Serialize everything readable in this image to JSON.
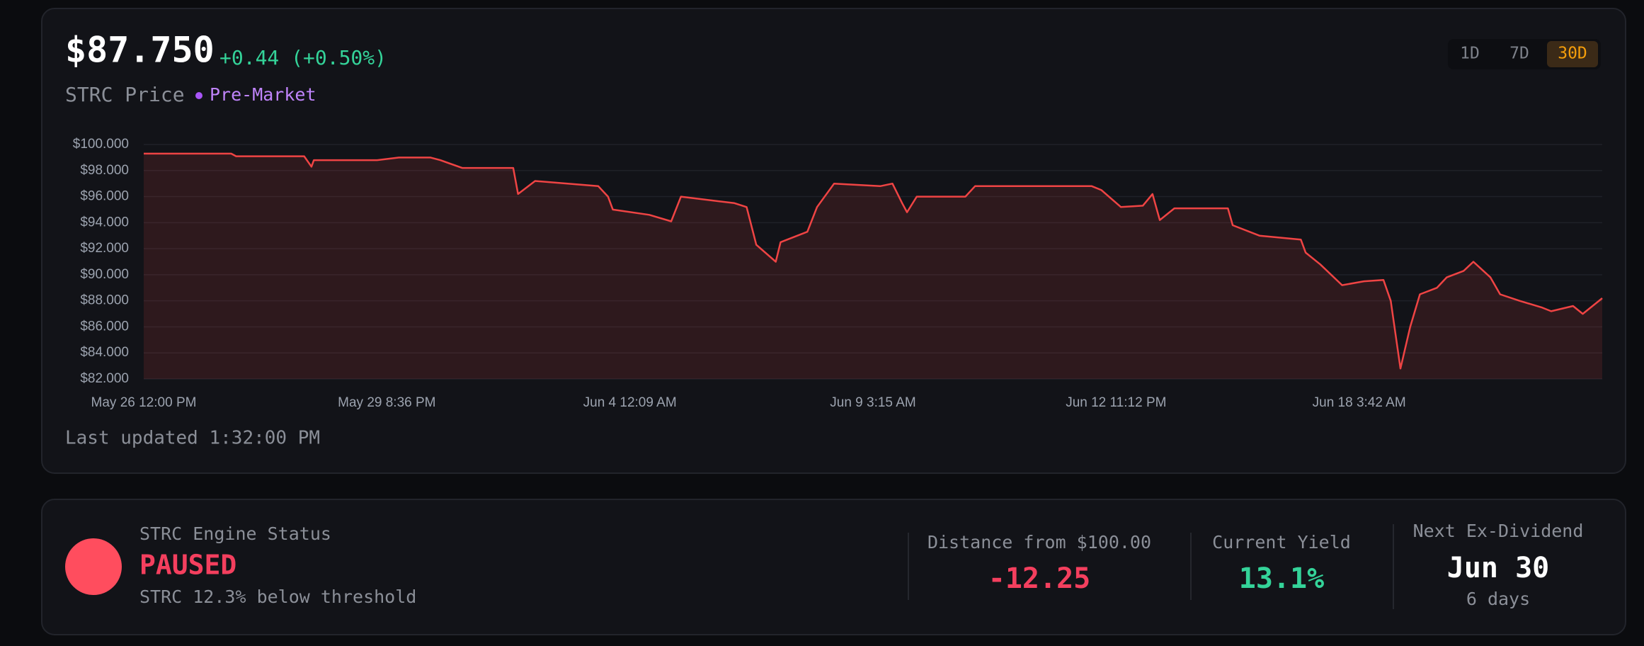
{
  "header": {
    "price": "$87.750",
    "change": "+0.44 (+0.50%)",
    "label": "STRC Price",
    "session": "Pre-Market"
  },
  "range_buttons": [
    "1D",
    "7D",
    "30D"
  ],
  "chart_data": {
    "type": "line",
    "x": [
      0,
      36,
      38,
      66,
      69,
      70,
      96,
      105,
      118,
      122,
      131,
      152,
      154,
      161,
      187,
      191,
      193,
      208,
      217,
      221,
      243,
      248,
      252,
      260,
      262,
      273,
      277,
      284,
      303,
      308,
      312,
      314,
      318,
      338,
      342,
      390,
      394,
      402,
      411,
      415,
      418,
      424,
      446,
      448,
      459,
      476,
      478,
      484,
      493,
      502,
      510,
      513,
      517,
      521,
      525,
      532,
      536,
      543,
      547,
      554,
      558,
      566,
      575,
      579,
      588,
      592,
      600
    ],
    "series": [
      {
        "color": "#ef4444",
        "values": [
          99.3,
          99.3,
          99.1,
          99.1,
          98.3,
          98.8,
          98.8,
          99.0,
          99.0,
          98.8,
          98.2,
          98.2,
          96.2,
          97.2,
          96.8,
          96.0,
          95.0,
          94.6,
          94.1,
          96.0,
          95.5,
          95.2,
          92.3,
          91.0,
          92.5,
          93.3,
          95.2,
          97.0,
          96.8,
          97.0,
          95.5,
          94.8,
          96.0,
          96.0,
          96.8,
          96.8,
          96.5,
          95.2,
          95.3,
          96.2,
          94.2,
          95.1,
          95.1,
          93.8,
          93.0,
          92.7,
          91.7,
          90.8,
          89.2,
          89.5,
          89.6,
          88.0,
          82.8,
          86.0,
          88.5,
          89.0,
          89.8,
          90.3,
          91.0,
          89.8,
          88.5,
          88.0,
          87.5,
          87.2,
          87.6,
          87.0,
          88.2
        ]
      }
    ],
    "xlim": [
      0,
      600
    ],
    "xticks": [
      {
        "value": 0,
        "label": "May 26 12:00 PM"
      },
      {
        "value": 100,
        "label": "May 29 8:36 PM"
      },
      {
        "value": 200,
        "label": "Jun 4 12:09 AM"
      },
      {
        "value": 300,
        "label": "Jun 9 3:15 AM"
      },
      {
        "value": 400,
        "label": "Jun 12 11:12 PM"
      },
      {
        "value": 500,
        "label": "Jun 18 3:42 AM"
      }
    ],
    "ylim": [
      82,
      100
    ],
    "yticks": [
      {
        "value": 82,
        "label": "$82.000"
      },
      {
        "value": 84,
        "label": "$84.000"
      },
      {
        "value": 86,
        "label": "$86.000"
      },
      {
        "value": 88,
        "label": "$88.000"
      },
      {
        "value": 90,
        "label": "$90.000"
      },
      {
        "value": 92,
        "label": "$92.000"
      },
      {
        "value": 94,
        "label": "$94.000"
      },
      {
        "value": 96,
        "label": "$96.000"
      },
      {
        "value": 98,
        "label": "$98.000"
      },
      {
        "value": 100,
        "label": "$100.000"
      }
    ],
    "grid": true
  },
  "footer": {
    "last_updated": "Last updated 1:32:00 PM"
  },
  "status": {
    "title": "STRC Engine Status",
    "state": "PAUSED",
    "detail": "STRC 12.3% below threshold"
  },
  "metrics": [
    {
      "label": "Distance from $100.00",
      "value": "-12.25"
    },
    {
      "label": "Current Yield",
      "value": "13.1%"
    }
  ],
  "dividend": {
    "label": "Next Ex-Dividend",
    "date": "Jun 30",
    "days": "6 days"
  }
}
